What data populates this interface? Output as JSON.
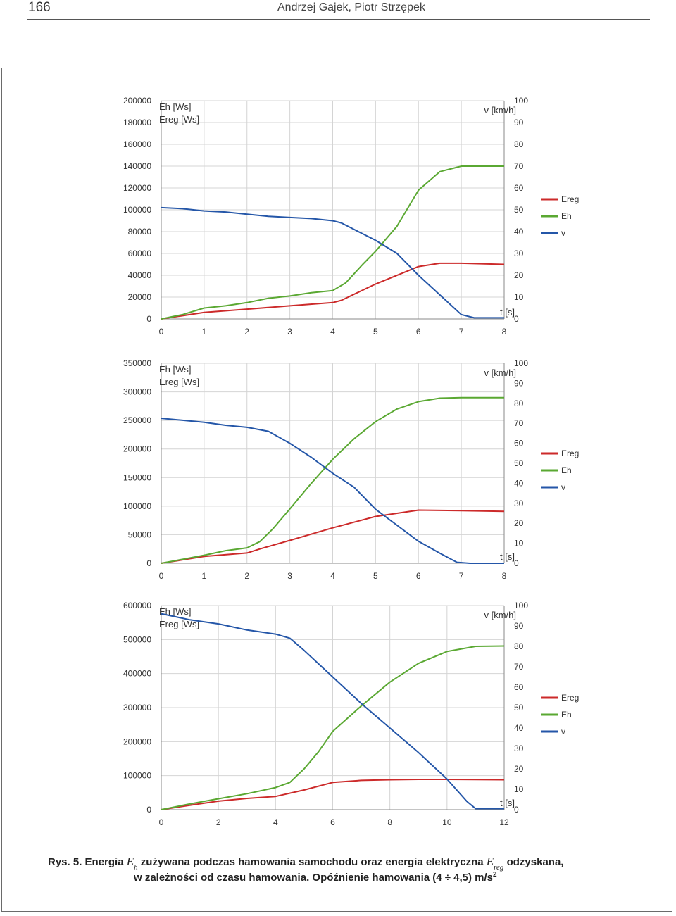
{
  "header": {
    "page_number": "166",
    "authors": "Andrzej Gajek, Piotr Strzępek"
  },
  "caption": {
    "prefix": "Rys. 5. Energia ",
    "sym1": "E",
    "sym1_sub": "h",
    "mid": " zużywana podczas hamowania samochodu oraz energia elektryczna ",
    "sym2": "E",
    "sym2_sub": "reg",
    "suffix": " odzyskana,",
    "line2_a": "w zależności od czasu hamowania. Opóźnienie hamowania (4 ÷ 4,5) m/s",
    "line2_sup": "2"
  },
  "colors": {
    "ereg": "#cc2a2a",
    "eh": "#5aa832",
    "v": "#2456a8",
    "grid": "#d4d4d4"
  },
  "chart_data": [
    {
      "type": "line",
      "left_label_1": "Eh [Ws]",
      "left_label_2": "Ereg [Ws]",
      "right_label": "v [km/h]",
      "x_label": "t [s]",
      "xlim": [
        0,
        8
      ],
      "xticks": [
        0,
        1,
        2,
        3,
        4,
        5,
        6,
        7,
        8
      ],
      "ylim_left": [
        0,
        200000
      ],
      "yticks_left": [
        0,
        20000,
        40000,
        60000,
        80000,
        100000,
        120000,
        140000,
        160000,
        180000,
        200000
      ],
      "ylim_right": [
        0,
        100
      ],
      "yticks_right": [
        0,
        10,
        20,
        30,
        40,
        50,
        60,
        70,
        80,
        90,
        100
      ],
      "legend": [
        "Ereg",
        "Eh",
        "v"
      ],
      "series": [
        {
          "name": "Ereg",
          "axis": "left",
          "points": [
            [
              0,
              0
            ],
            [
              1,
              6000
            ],
            [
              2,
              9000
            ],
            [
              3,
              12000
            ],
            [
              4,
              15000
            ],
            [
              4.2,
              17000
            ],
            [
              5,
              32000
            ],
            [
              6,
              48000
            ],
            [
              6.5,
              51000
            ],
            [
              7,
              51000
            ],
            [
              8,
              50000
            ]
          ]
        },
        {
          "name": "Eh",
          "axis": "left",
          "points": [
            [
              0,
              0
            ],
            [
              0.5,
              4000
            ],
            [
              1,
              10000
            ],
            [
              1.5,
              12000
            ],
            [
              2,
              15000
            ],
            [
              2.5,
              19000
            ],
            [
              3,
              21000
            ],
            [
              3.5,
              24000
            ],
            [
              4,
              26000
            ],
            [
              4.3,
              33000
            ],
            [
              4.7,
              50000
            ],
            [
              5,
              62000
            ],
            [
              5.5,
              85000
            ],
            [
              6,
              118000
            ],
            [
              6.5,
              135000
            ],
            [
              7,
              140000
            ],
            [
              8,
              140000
            ]
          ]
        },
        {
          "name": "v",
          "axis": "right",
          "points": [
            [
              0,
              51
            ],
            [
              0.5,
              50.5
            ],
            [
              1,
              49.5
            ],
            [
              1.5,
              49
            ],
            [
              2,
              48
            ],
            [
              2.5,
              47
            ],
            [
              3,
              46.5
            ],
            [
              3.5,
              46
            ],
            [
              4,
              45
            ],
            [
              4.2,
              44
            ],
            [
              4.5,
              41
            ],
            [
              5,
              36
            ],
            [
              5.5,
              30
            ],
            [
              6,
              20
            ],
            [
              6.5,
              11
            ],
            [
              7,
              2
            ],
            [
              7.3,
              0.5
            ],
            [
              8,
              0.5
            ]
          ]
        }
      ]
    },
    {
      "type": "line",
      "left_label_1": "Eh [Ws]",
      "left_label_2": "Ereg [Ws]",
      "right_label": "v [km/h]",
      "x_label": "t [s]",
      "xlim": [
        0,
        8
      ],
      "xticks": [
        0,
        1,
        2,
        3,
        4,
        5,
        6,
        7,
        8
      ],
      "ylim_left": [
        0,
        350000
      ],
      "yticks_left": [
        0,
        50000,
        100000,
        150000,
        200000,
        250000,
        300000,
        350000
      ],
      "ylim_right": [
        0,
        100
      ],
      "yticks_right": [
        0,
        10,
        20,
        30,
        40,
        50,
        60,
        70,
        80,
        90,
        100
      ],
      "legend": [
        "Ereg",
        "Eh",
        "v"
      ],
      "series": [
        {
          "name": "Ereg",
          "axis": "left",
          "points": [
            [
              0,
              0
            ],
            [
              1,
              12000
            ],
            [
              2,
              18000
            ],
            [
              2.3,
              25000
            ],
            [
              3,
              40000
            ],
            [
              4,
              62000
            ],
            [
              5,
              82000
            ],
            [
              6,
              93000
            ],
            [
              7,
              92000
            ],
            [
              8,
              91000
            ]
          ]
        },
        {
          "name": "Eh",
          "axis": "left",
          "points": [
            [
              0,
              0
            ],
            [
              0.5,
              7000
            ],
            [
              1,
              14000
            ],
            [
              1.5,
              22000
            ],
            [
              2,
              27000
            ],
            [
              2.3,
              38000
            ],
            [
              2.6,
              60000
            ],
            [
              3,
              95000
            ],
            [
              3.5,
              140000
            ],
            [
              4,
              182000
            ],
            [
              4.5,
              218000
            ],
            [
              5,
              248000
            ],
            [
              5.5,
              270000
            ],
            [
              6,
              283000
            ],
            [
              6.5,
              289000
            ],
            [
              7,
              290000
            ],
            [
              8,
              290000
            ]
          ]
        },
        {
          "name": "v",
          "axis": "right",
          "points": [
            [
              0,
              72.5
            ],
            [
              0.5,
              71.5
            ],
            [
              1,
              70.5
            ],
            [
              1.5,
              69
            ],
            [
              2,
              68
            ],
            [
              2.5,
              66
            ],
            [
              3,
              60
            ],
            [
              3.5,
              53
            ],
            [
              4,
              45
            ],
            [
              4.5,
              38
            ],
            [
              5,
              27
            ],
            [
              5.5,
              19
            ],
            [
              6,
              11
            ],
            [
              6.5,
              5
            ],
            [
              6.9,
              0.5
            ],
            [
              7.2,
              0
            ],
            [
              8,
              0
            ]
          ]
        }
      ]
    },
    {
      "type": "line",
      "left_label_1": "Eh [Ws]",
      "left_label_2": "Ereg [Ws]",
      "right_label": "v [km/h]",
      "x_label": "t [s]",
      "xlim": [
        0,
        12
      ],
      "xticks": [
        0,
        2,
        4,
        6,
        8,
        10,
        12
      ],
      "ylim_left": [
        0,
        600000
      ],
      "yticks_left": [
        0,
        100000,
        200000,
        300000,
        400000,
        500000,
        600000
      ],
      "ylim_right": [
        0,
        100
      ],
      "yticks_right": [
        0,
        10,
        20,
        30,
        40,
        50,
        60,
        70,
        80,
        90,
        100
      ],
      "legend": [
        "Ereg",
        "Eh",
        "v"
      ],
      "series": [
        {
          "name": "Ereg",
          "axis": "left",
          "points": [
            [
              0,
              0
            ],
            [
              1,
              13000
            ],
            [
              2,
              25000
            ],
            [
              3,
              33000
            ],
            [
              4,
              39000
            ],
            [
              5,
              58000
            ],
            [
              6,
              80000
            ],
            [
              7,
              86000
            ],
            [
              8,
              88000
            ],
            [
              9,
              89000
            ],
            [
              10,
              89000
            ],
            [
              12,
              88000
            ]
          ]
        },
        {
          "name": "Eh",
          "axis": "left",
          "points": [
            [
              0,
              0
            ],
            [
              1,
              17000
            ],
            [
              2,
              32000
            ],
            [
              3,
              47000
            ],
            [
              4,
              65000
            ],
            [
              4.5,
              80000
            ],
            [
              5,
              120000
            ],
            [
              5.5,
              170000
            ],
            [
              6,
              230000
            ],
            [
              7,
              305000
            ],
            [
              8,
              375000
            ],
            [
              9,
              430000
            ],
            [
              10,
              465000
            ],
            [
              11,
              480000
            ],
            [
              12,
              481000
            ]
          ]
        },
        {
          "name": "v",
          "axis": "right",
          "points": [
            [
              0,
              96
            ],
            [
              1,
              93
            ],
            [
              2,
              91
            ],
            [
              3,
              88
            ],
            [
              4,
              86
            ],
            [
              4.5,
              84
            ],
            [
              5,
              78
            ],
            [
              6,
              65
            ],
            [
              7,
              52
            ],
            [
              8,
              40
            ],
            [
              9,
              28
            ],
            [
              10,
              15
            ],
            [
              10.7,
              4
            ],
            [
              11,
              0.5
            ],
            [
              12,
              0.5
            ]
          ]
        }
      ]
    }
  ]
}
